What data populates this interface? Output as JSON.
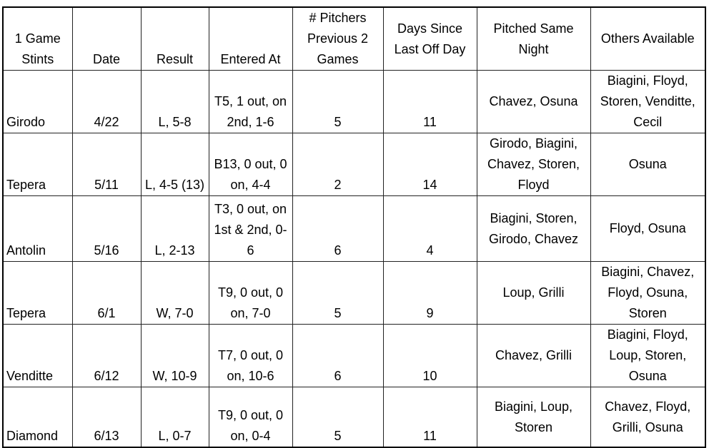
{
  "table": {
    "headers": [
      "1 Game Stints",
      "Date",
      "Result",
      "Entered At",
      "# Pitchers Previous 2 Games",
      "Days Since Last Off Day",
      "Pitched Same Night",
      "Others Available"
    ],
    "rows": [
      [
        "Girodo",
        "4/22",
        "L, 5-8",
        "T5, 1 out, on 2nd, 1-6",
        "5",
        "11",
        "Chavez, Osuna",
        "Biagini, Floyd, Storen, Venditte, Cecil"
      ],
      [
        "Tepera",
        "5/11",
        "L, 4-5 (13)",
        "B13, 0 out, 0 on, 4-4",
        "2",
        "14",
        "Girodo, Biagini, Chavez, Storen, Floyd",
        "Osuna"
      ],
      [
        "Antolin",
        "5/16",
        "L, 2-13",
        "T3, 0 out, on 1st & 2nd, 0-6",
        "6",
        "4",
        "Biagini, Storen, Girodo, Chavez",
        "Floyd, Osuna"
      ],
      [
        "Tepera",
        "6/1",
        "W, 7-0",
        "T9, 0 out, 0 on, 7-0",
        "5",
        "9",
        "Loup, Grilli",
        "Biagini, Chavez, Floyd, Osuna, Storen"
      ],
      [
        "Venditte",
        "6/12",
        "W, 10-9",
        "T7, 0 out, 0 on, 10-6",
        "6",
        "10",
        "Chavez, Grilli",
        "Biagini, Floyd, Loup, Storen, Osuna"
      ],
      [
        "Diamond",
        "6/13",
        "L, 0-7",
        "T9, 0 out, 0 on, 0-4",
        "5",
        "11",
        "Biagini, Loup, Storen",
        "Chavez, Floyd, Grilli, Osuna"
      ]
    ]
  }
}
